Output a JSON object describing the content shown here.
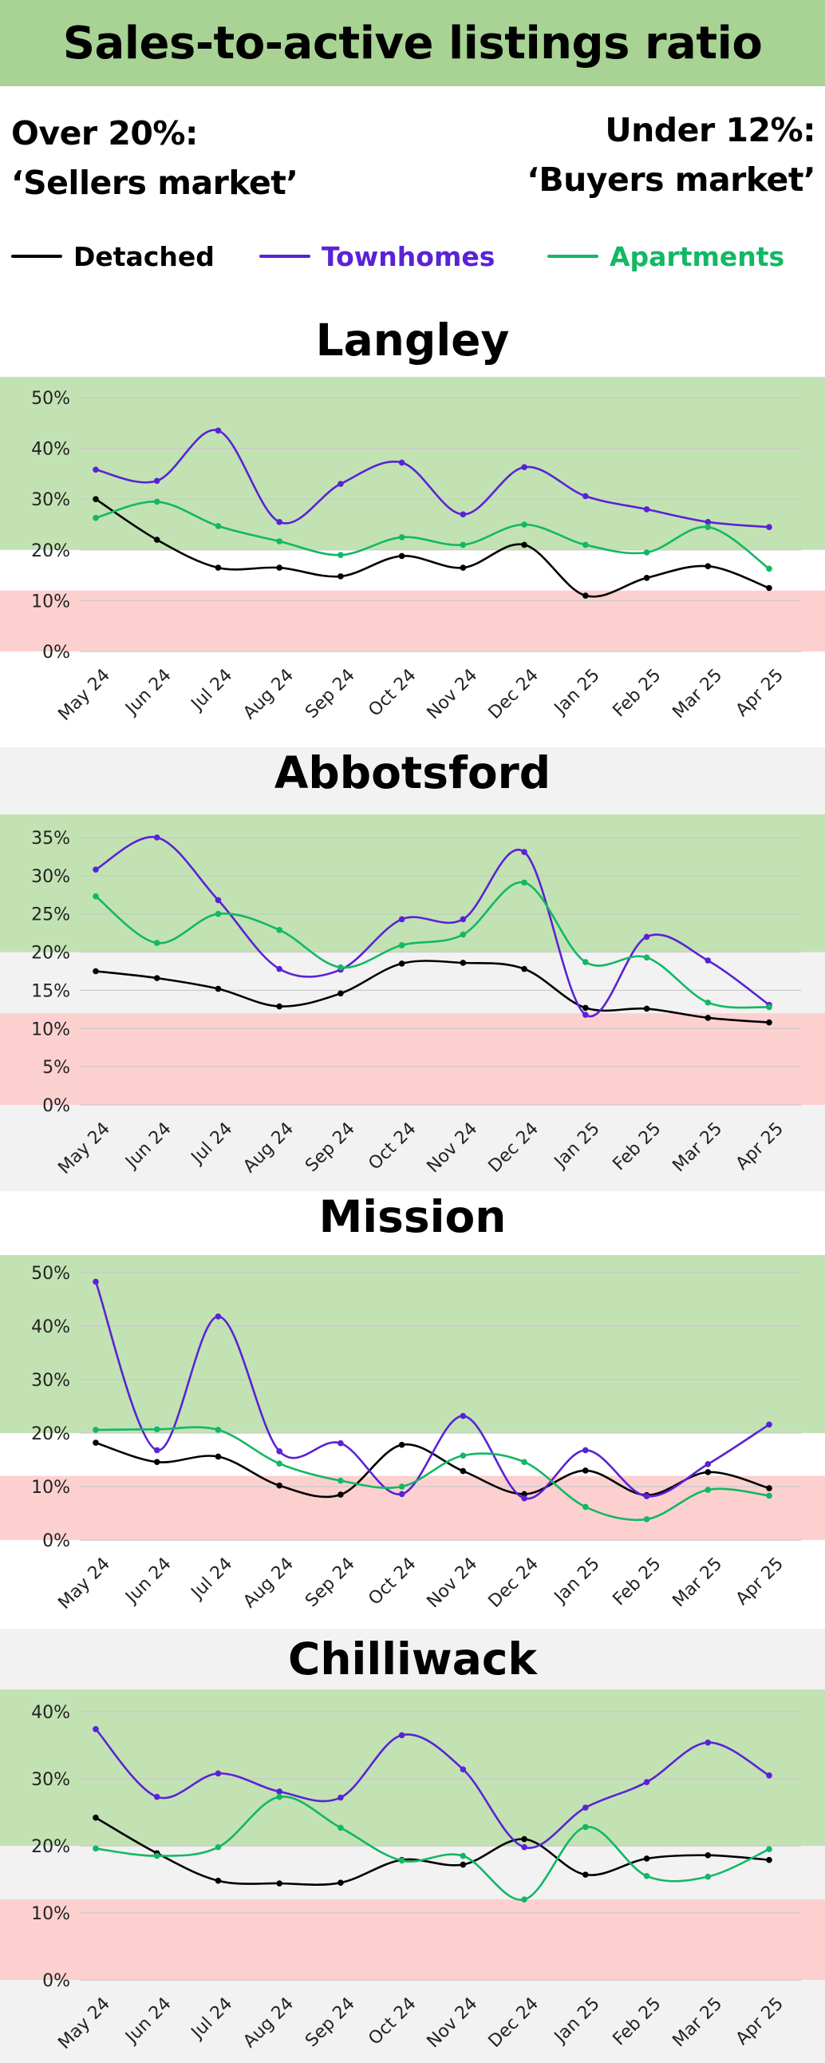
{
  "header": {
    "title": "Sales-to-active listings ratio"
  },
  "notes": {
    "sellers": {
      "line1": "Over 20%:",
      "line2": "‘Sellers market’"
    },
    "buyers": {
      "line1": "Under 12%:",
      "line2": "‘Buyers market’"
    }
  },
  "legend": [
    {
      "name": "Detached",
      "color": "#000000"
    },
    {
      "name": "Townhomes",
      "color": "#5a22d6"
    },
    {
      "name": "Apartments",
      "color": "#12b864"
    }
  ],
  "colors": {
    "sellers_band": "#c2e2b3",
    "buyers_band": "#fdd0d0",
    "neutral_band": "#f2f2f2",
    "grid": "#c9c9c9",
    "header_bg": "#a8d394"
  },
  "chart_data": [
    {
      "type": "line",
      "title": "Langley",
      "categories": [
        "May 24",
        "Jun 24",
        "Jul 24",
        "Aug 24",
        "Sep 24",
        "Oct 24",
        "Nov 24",
        "Dec 24",
        "Jan 25",
        "Feb 25",
        "Mar 25",
        "Apr 25"
      ],
      "yticks": [
        "0%",
        "10%",
        "20%",
        "30%",
        "40%",
        "50%"
      ],
      "ylim": [
        0,
        50
      ],
      "bands": {
        "sellers_above": 20,
        "buyers_below": 12
      },
      "series": [
        {
          "name": "Detached",
          "values": [
            30,
            22,
            16.5,
            16.5,
            14.8,
            18.8,
            16.5,
            21,
            11,
            14.5,
            16.8,
            12.5
          ]
        },
        {
          "name": "Townhomes",
          "values": [
            35.8,
            33.6,
            43.5,
            25.5,
            33,
            37.2,
            27,
            36.3,
            30.6,
            28,
            25.5,
            24.5
          ]
        },
        {
          "name": "Apartments",
          "values": [
            26.3,
            29.5,
            24.7,
            21.7,
            19,
            22.5,
            21,
            25,
            21,
            19.5,
            24.5,
            16.3
          ]
        }
      ]
    },
    {
      "type": "line",
      "title": "Abbotsford",
      "categories": [
        "May 24",
        "Jun 24",
        "Jul 24",
        "Aug 24",
        "Sep 24",
        "Oct 24",
        "Nov 24",
        "Dec 24",
        "Jan 25",
        "Feb 25",
        "Mar 25",
        "Apr 25"
      ],
      "yticks": [
        "0%",
        "5%",
        "10%",
        "15%",
        "20%",
        "25%",
        "30%",
        "35%"
      ],
      "ylim": [
        0,
        35
      ],
      "bands": {
        "sellers_above": 20,
        "buyers_below": 12
      },
      "series": [
        {
          "name": "Detached",
          "values": [
            17.5,
            16.6,
            15.2,
            12.9,
            14.6,
            18.5,
            18.6,
            17.8,
            12.7,
            12.6,
            11.4,
            10.8
          ]
        },
        {
          "name": "Townhomes",
          "values": [
            30.8,
            35,
            26.8,
            17.8,
            17.7,
            24.3,
            24.3,
            33.1,
            11.8,
            22,
            18.9,
            13.1
          ]
        },
        {
          "name": "Apartments",
          "values": [
            27.3,
            21.2,
            25,
            22.9,
            18,
            20.9,
            22.3,
            29.1,
            18.7,
            19.3,
            13.4,
            12.8
          ]
        }
      ]
    },
    {
      "type": "line",
      "title": "Mission",
      "categories": [
        "May 24",
        "Jun 24",
        "Jul 24",
        "Aug 24",
        "Sep 24",
        "Oct 24",
        "Nov 24",
        "Dec 24",
        "Jan 25",
        "Feb 25",
        "Mar 25",
        "Apr 25"
      ],
      "yticks": [
        "0%",
        "10%",
        "20%",
        "30%",
        "40%",
        "50%"
      ],
      "ylim": [
        0,
        50
      ],
      "bands": {
        "sellers_above": 20,
        "buyers_below": 12
      },
      "series": [
        {
          "name": "Detached",
          "values": [
            18.2,
            14.6,
            15.6,
            10.2,
            8.5,
            17.8,
            12.9,
            8.6,
            13,
            8.4,
            12.7,
            9.7
          ]
        },
        {
          "name": "Townhomes",
          "values": [
            48.3,
            16.8,
            41.8,
            16.6,
            18.1,
            8.6,
            23.2,
            7.8,
            16.8,
            8.2,
            14.2,
            21.6
          ]
        },
        {
          "name": "Apartments",
          "values": [
            20.6,
            20.7,
            20.6,
            14.3,
            11.1,
            10,
            15.8,
            14.6,
            6.2,
            3.9,
            9.4,
            8.3
          ]
        }
      ]
    },
    {
      "type": "line",
      "title": "Chilliwack",
      "categories": [
        "May 24",
        "Jun 24",
        "Jul 24",
        "Aug 24",
        "Sep 24",
        "Oct 24",
        "Nov 24",
        "Dec 24",
        "Jan 25",
        "Feb 25",
        "Mar 25",
        "Apr 25"
      ],
      "yticks": [
        "0%",
        "10%",
        "20%",
        "30%",
        "40%"
      ],
      "ylim": [
        0,
        40
      ],
      "bands": {
        "sellers_above": 20,
        "buyers_below": 12
      },
      "series": [
        {
          "name": "Detached",
          "values": [
            24.2,
            18.9,
            14.8,
            14.4,
            14.5,
            17.9,
            17.2,
            21,
            15.7,
            18.1,
            18.6,
            17.9
          ]
        },
        {
          "name": "Townhomes",
          "values": [
            37.4,
            27.3,
            30.8,
            28.1,
            27.2,
            36.5,
            31.4,
            19.8,
            25.7,
            29.5,
            35.4,
            30.5
          ]
        },
        {
          "name": "Apartments",
          "values": [
            19.6,
            18.5,
            19.8,
            27.3,
            22.7,
            17.8,
            18.5,
            12,
            22.8,
            15.5,
            15.4,
            19.5
          ]
        }
      ]
    }
  ]
}
